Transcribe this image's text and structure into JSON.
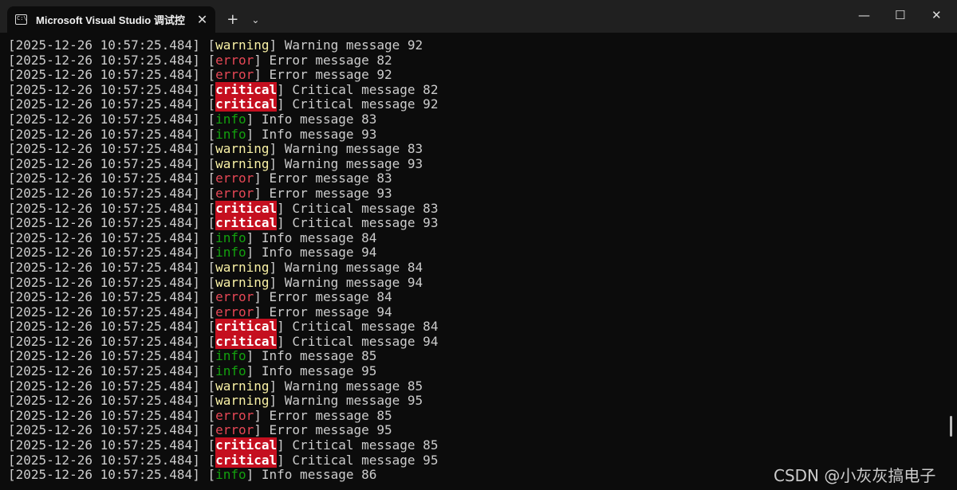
{
  "window": {
    "title": "Microsoft Visual Studio 调试控",
    "tab_icon": "C:\\",
    "new_tab": "+",
    "dropdown": "⌄",
    "minimize": "—",
    "maximize": "☐",
    "close": "✕",
    "tab_close": "✕"
  },
  "timestamp": "2025-12-26 10:57:25.484",
  "colors": {
    "info": "#13a10e",
    "warning": "#f9f1a5",
    "error": "#e74856",
    "critical_bg": "#c50f1f"
  },
  "lines": [
    {
      "level": "warning",
      "text": "Warning message 92"
    },
    {
      "level": "error",
      "text": "Error message 82"
    },
    {
      "level": "error",
      "text": "Error message 92"
    },
    {
      "level": "critical",
      "text": "Critical message 82"
    },
    {
      "level": "critical",
      "text": "Critical message 92"
    },
    {
      "level": "info",
      "text": "Info message 83"
    },
    {
      "level": "info",
      "text": "Info message 93"
    },
    {
      "level": "warning",
      "text": "Warning message 83"
    },
    {
      "level": "warning",
      "text": "Warning message 93"
    },
    {
      "level": "error",
      "text": "Error message 83"
    },
    {
      "level": "error",
      "text": "Error message 93"
    },
    {
      "level": "critical",
      "text": "Critical message 83"
    },
    {
      "level": "critical",
      "text": "Critical message 93"
    },
    {
      "level": "info",
      "text": "Info message 84"
    },
    {
      "level": "info",
      "text": "Info message 94"
    },
    {
      "level": "warning",
      "text": "Warning message 84"
    },
    {
      "level": "warning",
      "text": "Warning message 94"
    },
    {
      "level": "error",
      "text": "Error message 84"
    },
    {
      "level": "error",
      "text": "Error message 94"
    },
    {
      "level": "critical",
      "text": "Critical message 84"
    },
    {
      "level": "critical",
      "text": "Critical message 94"
    },
    {
      "level": "info",
      "text": "Info message 85"
    },
    {
      "level": "info",
      "text": "Info message 95"
    },
    {
      "level": "warning",
      "text": "Warning message 85"
    },
    {
      "level": "warning",
      "text": "Warning message 95"
    },
    {
      "level": "error",
      "text": "Error message 85"
    },
    {
      "level": "error",
      "text": "Error message 95"
    },
    {
      "level": "critical",
      "text": "Critical message 85"
    },
    {
      "level": "critical",
      "text": "Critical message 95"
    },
    {
      "level": "info",
      "text": "Info message 86"
    }
  ],
  "watermark": "CSDN @小灰灰搞电子"
}
